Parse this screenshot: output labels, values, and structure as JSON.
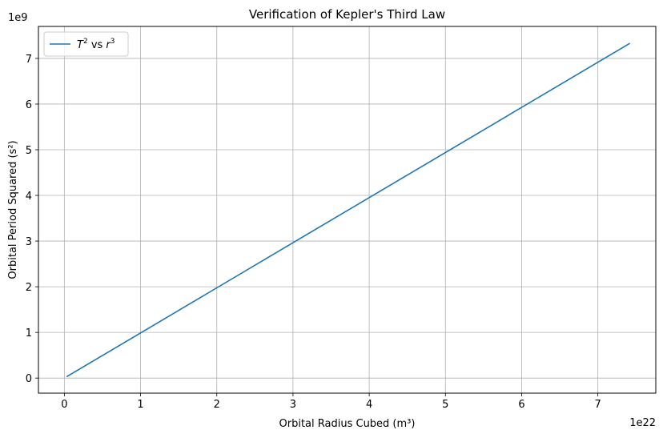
{
  "chart_data": {
    "type": "line",
    "title": "Verification of Kepler's Third Law",
    "xlabel": "Orbital Radius Cubed (m³)",
    "ylabel": "Orbital Period Squared (s²)",
    "x_offset_label": "1e22",
    "y_offset_label": "1e9",
    "x_scale": 1e+22,
    "y_scale": 1000000000.0,
    "xlim": [
      -0.34,
      7.76
    ],
    "ylim": [
      -0.33,
      7.7
    ],
    "x_ticks": [
      0,
      1,
      2,
      3,
      4,
      5,
      6,
      7
    ],
    "y_ticks": [
      0,
      1,
      2,
      3,
      4,
      5,
      6,
      7
    ],
    "grid": true,
    "legend": {
      "placement": "top-left",
      "entries": [
        {
          "prefix": "T",
          "prefix_sup": "2",
          "mid": " vs ",
          "suffix": "r",
          "suffix_sup": "3"
        }
      ]
    },
    "series": [
      {
        "color": "#1f77b4",
        "x": [
          0.03,
          7.42
        ],
        "y": [
          0.03,
          7.33
        ]
      }
    ]
  }
}
